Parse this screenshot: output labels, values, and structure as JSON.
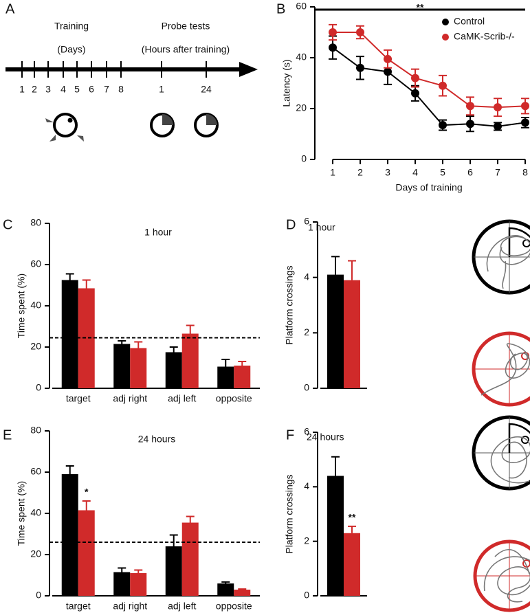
{
  "timeline": {
    "panel": "A",
    "training_label": "Training",
    "training_sub": "(Days)",
    "probe_label": "Probe tests",
    "probe_sub": "(Hours after training)",
    "day_ticks": [
      1,
      2,
      3,
      4,
      5,
      6,
      7,
      8
    ],
    "probe_ticks": [
      1,
      24
    ]
  },
  "chart_data": [
    {
      "panel": "B",
      "type": "line",
      "x_label": "Days of training",
      "y_label": "Latency (s)",
      "annotation": "**",
      "x": [
        1,
        2,
        3,
        4,
        5,
        6,
        7,
        8
      ],
      "xlim": [
        1,
        8
      ],
      "xticks": [
        1,
        2,
        3,
        4,
        5,
        6,
        7,
        8
      ],
      "ylim": [
        0,
        60
      ],
      "yticks": [
        0,
        20,
        40,
        60
      ],
      "legend": "top-right",
      "series": [
        {
          "name": "Control",
          "color": "#000000",
          "values": [
            44,
            36,
            34.5,
            26,
            13.5,
            14,
            13,
            14.5
          ],
          "errors": [
            4.5,
            4.5,
            5,
            3,
            2,
            3,
            1.5,
            2
          ]
        },
        {
          "name": "CaMK-Scrib-/-",
          "color": "#d02a2a",
          "values": [
            50,
            50,
            39.5,
            32,
            29,
            21,
            20.5,
            21
          ],
          "errors": [
            3,
            2.5,
            3.5,
            3.5,
            4,
            3.5,
            3.5,
            3
          ]
        }
      ]
    },
    {
      "panel": "C",
      "type": "bar",
      "title": "1 hour",
      "y_label": "Time spent (%)",
      "categories": [
        "target",
        "adj right",
        "adj left",
        "opposite"
      ],
      "ylim": [
        0,
        80
      ],
      "yticks": [
        0,
        20,
        40,
        60,
        80
      ],
      "reference_line": 24.5,
      "series": [
        {
          "color": "#000000",
          "values": [
            52.5,
            21.5,
            17.5,
            10.5
          ],
          "errors": [
            3,
            1.5,
            2.5,
            3.5
          ]
        },
        {
          "color": "#d02a2a",
          "values": [
            48.5,
            19.5,
            26.5,
            11
          ],
          "errors": [
            4,
            3,
            4,
            2
          ]
        }
      ]
    },
    {
      "panel": "D",
      "type": "bar",
      "title": "1 hour",
      "y_label": "Platform crossings",
      "categories": [
        null
      ],
      "ylim": [
        0,
        6
      ],
      "yticks": [
        0,
        2,
        4,
        6
      ],
      "series": [
        {
          "color": "#000000",
          "values": [
            4.1
          ],
          "errors": [
            0.65
          ]
        },
        {
          "color": "#d02a2a",
          "values": [
            3.9
          ],
          "errors": [
            0.7
          ]
        }
      ]
    },
    {
      "panel": "E",
      "type": "bar",
      "title": "24 hours",
      "y_label": "Time spent (%)",
      "annotation": "*",
      "categories": [
        "target",
        "adj right",
        "adj left",
        "opposite"
      ],
      "ylim": [
        0,
        80
      ],
      "yticks": [
        0,
        20,
        40,
        60,
        80
      ],
      "reference_line": 26,
      "series": [
        {
          "color": "#000000",
          "values": [
            59,
            11.5,
            24,
            6
          ],
          "errors": [
            4,
            2,
            5.5,
            0.7
          ]
        },
        {
          "color": "#d02a2a",
          "values": [
            41.5,
            11,
            35.5,
            3
          ],
          "errors": [
            4.5,
            1.5,
            3,
            0.3
          ]
        }
      ]
    },
    {
      "panel": "F",
      "type": "bar",
      "title": "24 hours",
      "y_label": "Platform crossings",
      "annotation": "**",
      "categories": [
        null
      ],
      "ylim": [
        0,
        6
      ],
      "yticks": [
        0,
        2,
        4,
        6
      ],
      "series": [
        {
          "color": "#000000",
          "values": [
            4.4
          ],
          "errors": [
            0.7
          ]
        },
        {
          "color": "#d02a2a",
          "values": [
            2.3
          ],
          "errors": [
            0.25
          ]
        }
      ]
    }
  ]
}
